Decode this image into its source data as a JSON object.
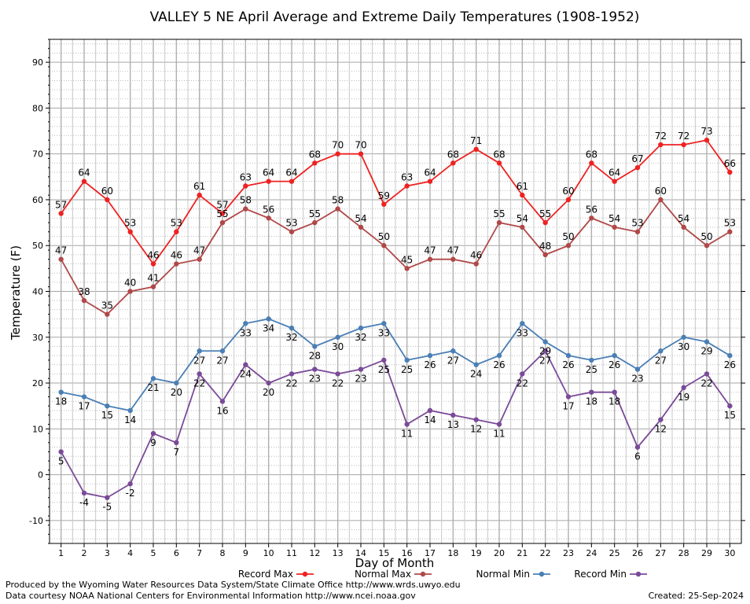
{
  "chart_data": {
    "type": "line",
    "title": "VALLEY 5 NE April Average and Extreme Daily Temperatures (1908-1952)",
    "xlabel": "Day of Month",
    "ylabel": "Temperature (F)",
    "ylim": [
      -15,
      95
    ],
    "yticks": [
      -10,
      0,
      10,
      20,
      30,
      40,
      50,
      60,
      70,
      80,
      90
    ],
    "categories": [
      "1",
      "2",
      "3",
      "4",
      "5",
      "6",
      "7",
      "8",
      "9",
      "10",
      "11",
      "12",
      "13",
      "14",
      "15",
      "16",
      "17",
      "18",
      "19",
      "20",
      "21",
      "22",
      "23",
      "24",
      "25",
      "26",
      "27",
      "28",
      "29",
      "30"
    ],
    "grid": true,
    "legend_position": "bottom",
    "series": [
      {
        "name": "Record Max",
        "color": "#ee2222",
        "label_pos": "above",
        "values": [
          57,
          64,
          60,
          53,
          46,
          53,
          61,
          57,
          63,
          64,
          64,
          68,
          70,
          70,
          59,
          63,
          64,
          68,
          71,
          68,
          61,
          55,
          60,
          68,
          64,
          67,
          72,
          72,
          73,
          66
        ]
      },
      {
        "name": "Normal Max",
        "color": "#b04848",
        "label_pos": "above",
        "values": [
          47,
          38,
          35,
          40,
          41,
          46,
          47,
          55,
          58,
          56,
          53,
          55,
          58,
          54,
          50,
          45,
          47,
          47,
          46,
          55,
          54,
          48,
          50,
          56,
          54,
          53,
          60,
          54,
          50,
          53
        ]
      },
      {
        "name": "Normal Min",
        "color": "#4a7fb5",
        "label_pos": "below",
        "values": [
          18,
          17,
          15,
          14,
          21,
          20,
          27,
          27,
          33,
          34,
          32,
          28,
          30,
          32,
          33,
          25,
          26,
          27,
          24,
          26,
          33,
          29,
          26,
          25,
          26,
          23,
          27,
          30,
          29,
          26
        ]
      },
      {
        "name": "Record Min",
        "color": "#7a4a98",
        "label_pos": "below",
        "values": [
          5,
          -4,
          -5,
          -2,
          9,
          7,
          22,
          16,
          24,
          20,
          22,
          23,
          22,
          23,
          25,
          11,
          14,
          13,
          12,
          11,
          22,
          27,
          17,
          18,
          18,
          6,
          12,
          19,
          22,
          15
        ]
      }
    ]
  },
  "footer": {
    "produced_by": "Produced by the Wyoming Water Resources Data System/State Climate Office http://www.wrds.uwyo.edu",
    "data_courtesy": "Data courtesy NOAA National Centers for Environmental Information http://www.ncei.noaa.gov",
    "created": "Created: 25-Sep-2024"
  }
}
